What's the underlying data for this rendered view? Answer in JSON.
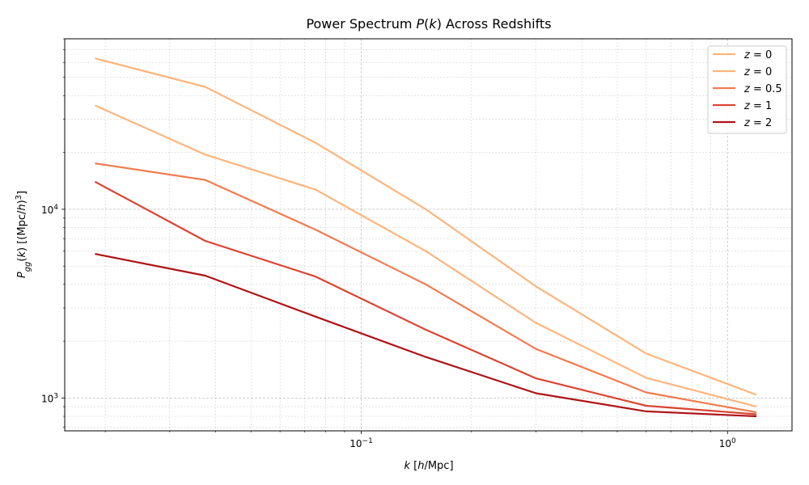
{
  "chart_data": {
    "type": "line",
    "title": "Power Spectrum P(k) Across Redshifts",
    "title_parts": [
      "Power Spectrum ",
      "P",
      "(",
      "k",
      ")",
      " Across Redshifts"
    ],
    "xlabel": "k [h/Mpc]",
    "xlabel_parts": [
      "k",
      " [",
      "h",
      "/Mpc]"
    ],
    "ylabel": "P_gg(k) [(Mpc/h)^3]",
    "ylabel_parts": [
      "P",
      "gg",
      "(",
      "k",
      ") [(Mpc/",
      "h",
      ")",
      "3",
      "]"
    ],
    "x_scale": "log",
    "y_scale": "log",
    "xlim": [
      0.0155,
      1.5
    ],
    "ylim": [
      670,
      80000
    ],
    "x_major_ticks": [
      {
        "value": 0.1,
        "mantissa": "10",
        "exp": "−1"
      },
      {
        "value": 1,
        "mantissa": "10",
        "exp": "0"
      }
    ],
    "y_major_ticks": [
      {
        "value": 1000,
        "mantissa": "10",
        "exp": "3"
      },
      {
        "value": 10000,
        "mantissa": "10",
        "exp": "4"
      }
    ],
    "grid": true,
    "legend": {
      "position": "top-right"
    },
    "x": [
      0.01875,
      0.0375,
      0.075,
      0.15,
      0.3,
      0.6,
      1.2
    ],
    "series": [
      {
        "name": "z = 0",
        "label_var": "z",
        "label_val": "0",
        "color": "#fdb57e",
        "values": [
          63000,
          44500,
          22500,
          10000,
          3900,
          1720,
          1040
        ]
      },
      {
        "name": "z = 0",
        "label_var": "z",
        "label_val": "0",
        "color": "#fdb57e",
        "values": [
          35500,
          19500,
          12700,
          6000,
          2500,
          1280,
          900
        ]
      },
      {
        "name": "z = 0.5",
        "label_var": "z",
        "label_val": "0.5",
        "color": "#f07c52",
        "values": [
          17500,
          14300,
          7800,
          4000,
          1820,
          1070,
          840
        ]
      },
      {
        "name": "z = 1",
        "label_var": "z",
        "label_val": "1",
        "color": "#da4433",
        "values": [
          14000,
          6800,
          4400,
          2300,
          1270,
          910,
          820
        ]
      },
      {
        "name": "z = 2",
        "label_var": "z",
        "label_val": "2",
        "color": "#ae1418",
        "values": [
          5800,
          4450,
          2700,
          1650,
          1060,
          850,
          800
        ]
      }
    ]
  }
}
